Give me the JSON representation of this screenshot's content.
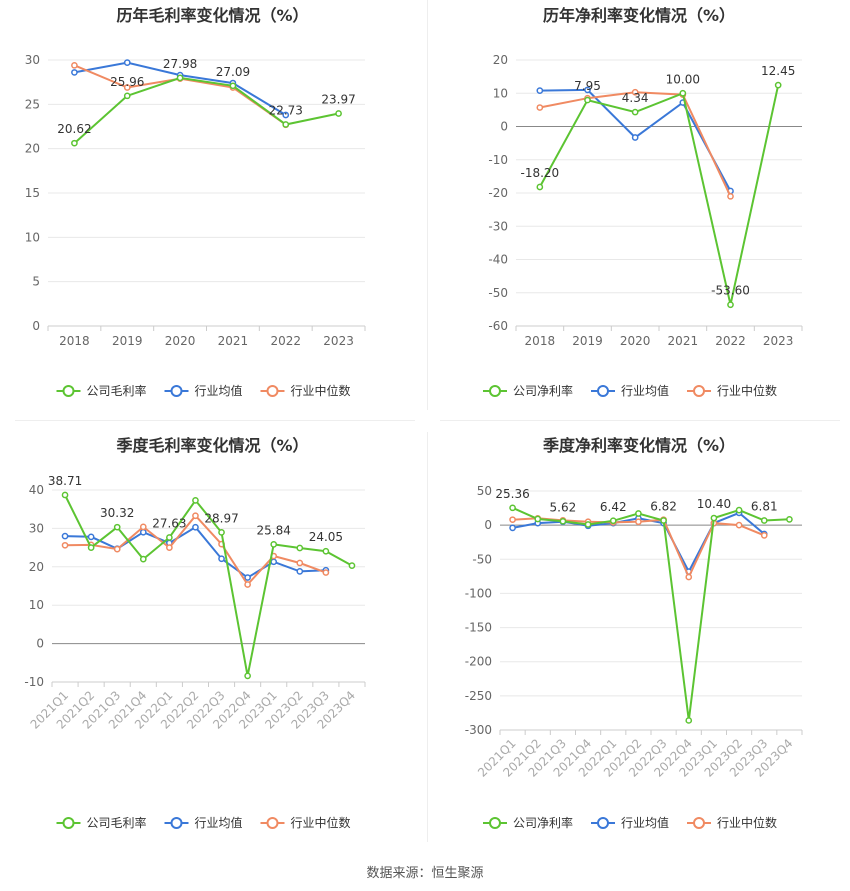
{
  "footer": "数据来源：恒生聚源",
  "colors": {
    "company": "#5cc432",
    "avg": "#3a78d8",
    "median": "#f08a62",
    "axis": "#999999",
    "grid": "#e8e8e8",
    "text": "#666666"
  },
  "chart_data": [
    {
      "type": "line",
      "title": "历年毛利率变化情况（%）",
      "categories": [
        "2018",
        "2019",
        "2020",
        "2021",
        "2022",
        "2023"
      ],
      "ylim": [
        0,
        30
      ],
      "yticks": [
        0,
        5,
        10,
        15,
        20,
        25,
        30
      ],
      "rotate_x": false,
      "series": [
        {
          "name": "公司毛利率",
          "key": "company",
          "values": [
            20.62,
            25.96,
            27.98,
            27.09,
            22.73,
            23.97
          ]
        },
        {
          "name": "行业均值",
          "key": "avg",
          "values": [
            28.6,
            29.7,
            28.3,
            27.4,
            23.8,
            null
          ]
        },
        {
          "name": "行业中位数",
          "key": "median",
          "values": [
            29.4,
            26.9,
            27.9,
            26.9,
            22.7,
            null
          ]
        }
      ],
      "labels": [
        "20.62",
        "25.96",
        "27.98",
        "27.09",
        "22.73",
        "23.97"
      ]
    },
    {
      "type": "line",
      "title": "历年净利率变化情况（%）",
      "categories": [
        "2018",
        "2019",
        "2020",
        "2021",
        "2022",
        "2023"
      ],
      "ylim": [
        -60,
        20
      ],
      "yticks": [
        -60,
        -50,
        -40,
        -30,
        -20,
        -10,
        0,
        10,
        20
      ],
      "rotate_x": false,
      "series": [
        {
          "name": "公司净利率",
          "key": "company",
          "values": [
            -18.2,
            7.95,
            4.34,
            10.0,
            -53.6,
            12.45
          ]
        },
        {
          "name": "行业均值",
          "key": "avg",
          "values": [
            10.8,
            11.0,
            -3.3,
            7.2,
            -19.4,
            null
          ]
        },
        {
          "name": "行业中位数",
          "key": "median",
          "values": [
            5.7,
            8.5,
            10.3,
            9.6,
            -21.0,
            null
          ]
        }
      ],
      "labels": [
        "-18.20",
        "7.95",
        "4.34",
        "10.00",
        "-53.60",
        "12.45"
      ]
    },
    {
      "type": "line",
      "title": "季度毛利率变化情况（%）",
      "categories": [
        "2021Q1",
        "2021Q2",
        "2021Q3",
        "2021Q4",
        "2022Q1",
        "2022Q2",
        "2022Q3",
        "2022Q4",
        "2023Q1",
        "2023Q2",
        "2023Q3",
        "2023Q4"
      ],
      "ylim": [
        -10,
        40
      ],
      "yticks": [
        -10,
        0,
        10,
        20,
        30,
        40
      ],
      "rotate_x": true,
      "series": [
        {
          "name": "公司毛利率",
          "key": "company",
          "values": [
            38.71,
            25.0,
            30.32,
            22.0,
            27.63,
            37.3,
            28.97,
            -8.4,
            25.84,
            24.9,
            24.05,
            20.3
          ]
        },
        {
          "name": "行业均值",
          "key": "avg",
          "values": [
            28.0,
            27.8,
            24.7,
            29.0,
            26.2,
            30.3,
            22.1,
            17.2,
            21.3,
            18.8,
            19.1,
            null
          ]
        },
        {
          "name": "行业中位数",
          "key": "median",
          "values": [
            25.6,
            25.7,
            24.6,
            30.4,
            25.0,
            33.3,
            25.9,
            15.4,
            22.8,
            21.0,
            18.5,
            null
          ]
        }
      ],
      "labels": [
        "38.71",
        "",
        "30.32",
        "",
        "27.63",
        "",
        "28.97",
        "",
        "25.84",
        "",
        "24.05",
        ""
      ]
    },
    {
      "type": "line",
      "title": "季度净利率变化情况（%）",
      "categories": [
        "2021Q1",
        "2021Q2",
        "2021Q3",
        "2021Q4",
        "2022Q1",
        "2022Q2",
        "2022Q3",
        "2022Q4",
        "2023Q1",
        "2023Q2",
        "2023Q3",
        "2023Q4"
      ],
      "ylim": [
        -300,
        50
      ],
      "yticks": [
        -300,
        -250,
        -200,
        -150,
        -100,
        -50,
        0,
        50
      ],
      "rotate_x": true,
      "series": [
        {
          "name": "公司净利率",
          "key": "company",
          "values": [
            25.36,
            9.0,
            5.62,
            1.0,
            6.42,
            17.0,
            6.82,
            -286.0,
            10.4,
            22.0,
            6.81,
            8.5
          ]
        },
        {
          "name": "行业均值",
          "key": "avg",
          "values": [
            -4.0,
            3.0,
            5.0,
            -1.0,
            3.0,
            10.0,
            3.0,
            -68.0,
            3.0,
            18.0,
            -13.0,
            null
          ]
        },
        {
          "name": "行业中位数",
          "key": "median",
          "values": [
            8.0,
            10.0,
            7.0,
            5.0,
            4.0,
            5.0,
            8.0,
            -76.0,
            3.0,
            0.0,
            -15.0,
            null
          ]
        }
      ],
      "labels": [
        "25.36",
        "",
        "5.62",
        "",
        "6.42",
        "",
        "6.82",
        "",
        "10.40",
        "",
        "6.81",
        ""
      ]
    }
  ]
}
